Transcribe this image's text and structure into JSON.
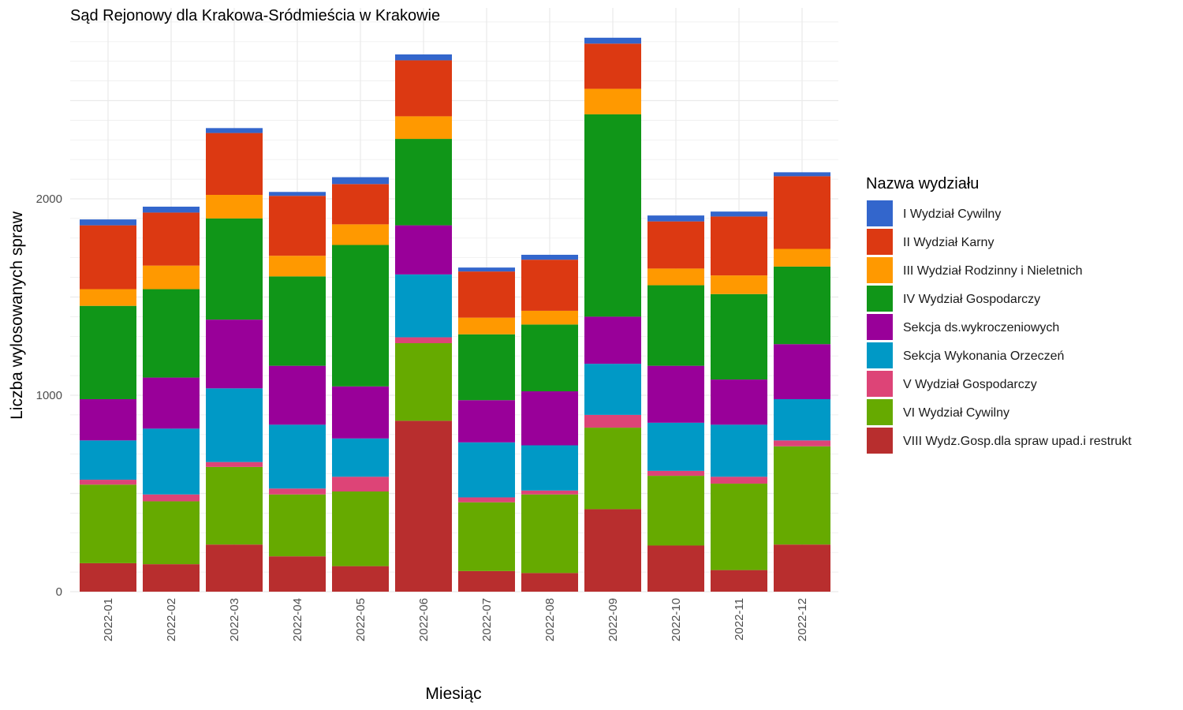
{
  "chart_data": {
    "type": "bar",
    "stacked": true,
    "title": "Sąd Rejonowy dla Krakowa-Sródmieścia w Krakowie",
    "xlabel": "Miesiąc",
    "ylabel": "Liczba wylosowanych spraw",
    "ylim": [
      0,
      2900
    ],
    "yticks": [
      0,
      1000,
      2000
    ],
    "grid": true,
    "legend_title": "Nazwa wydziału",
    "legend_position": "right",
    "categories": [
      "2022-01",
      "2022-02",
      "2022-03",
      "2022-04",
      "2022-05",
      "2022-06",
      "2022-07",
      "2022-08",
      "2022-09",
      "2022-10",
      "2022-11",
      "2022-12"
    ],
    "series": [
      {
        "name": "VIII Wydz.Gosp.dla spraw upad.i restrukt",
        "color": "#b82e2e",
        "values": [
          145,
          140,
          240,
          180,
          130,
          870,
          105,
          95,
          420,
          235,
          110,
          240
        ]
      },
      {
        "name": "VI Wydział Cywilny",
        "color": "#66aa00",
        "values": [
          400,
          320,
          395,
          315,
          380,
          395,
          350,
          400,
          415,
          355,
          440,
          500
        ]
      },
      {
        "name": "V Wydział Gospodarczy",
        "color": "#dd4477",
        "values": [
          25,
          35,
          25,
          30,
          75,
          30,
          25,
          20,
          65,
          25,
          35,
          30
        ]
      },
      {
        "name": "Sekcja Wykonania Orzeczeń",
        "color": "#0099c6",
        "values": [
          200,
          335,
          375,
          325,
          195,
          320,
          280,
          230,
          260,
          245,
          265,
          210
        ]
      },
      {
        "name": "Sekcja ds.wykroczeniowych",
        "color": "#990099",
        "values": [
          210,
          260,
          350,
          300,
          265,
          250,
          215,
          275,
          240,
          290,
          230,
          280
        ]
      },
      {
        "name": "IV Wydział Gospodarczy",
        "color": "#109618",
        "values": [
          475,
          450,
          515,
          455,
          720,
          440,
          335,
          340,
          1030,
          410,
          435,
          395
        ]
      },
      {
        "name": "III Wydział Rodzinny i Nieletnich",
        "color": "#ff9900",
        "values": [
          85,
          120,
          120,
          105,
          105,
          115,
          85,
          70,
          130,
          85,
          95,
          90
        ]
      },
      {
        "name": "II Wydział Karny",
        "color": "#dc3912",
        "values": [
          325,
          270,
          315,
          305,
          205,
          285,
          235,
          260,
          230,
          240,
          300,
          370
        ]
      },
      {
        "name": "I Wydział Cywilny",
        "color": "#3366cc",
        "values": [
          30,
          30,
          25,
          20,
          35,
          30,
          20,
          25,
          30,
          30,
          25,
          20
        ]
      }
    ],
    "legend_order": [
      "I Wydział Cywilny",
      "II Wydział Karny",
      "III Wydział Rodzinny i Nieletnich",
      "IV Wydział Gospodarczy",
      "Sekcja ds.wykroczeniowych",
      "Sekcja Wykonania Orzeczeń",
      "V Wydział Gospodarczy",
      "VI Wydział Cywilny",
      "VIII Wydz.Gosp.dla spraw upad.i restrukt"
    ]
  }
}
